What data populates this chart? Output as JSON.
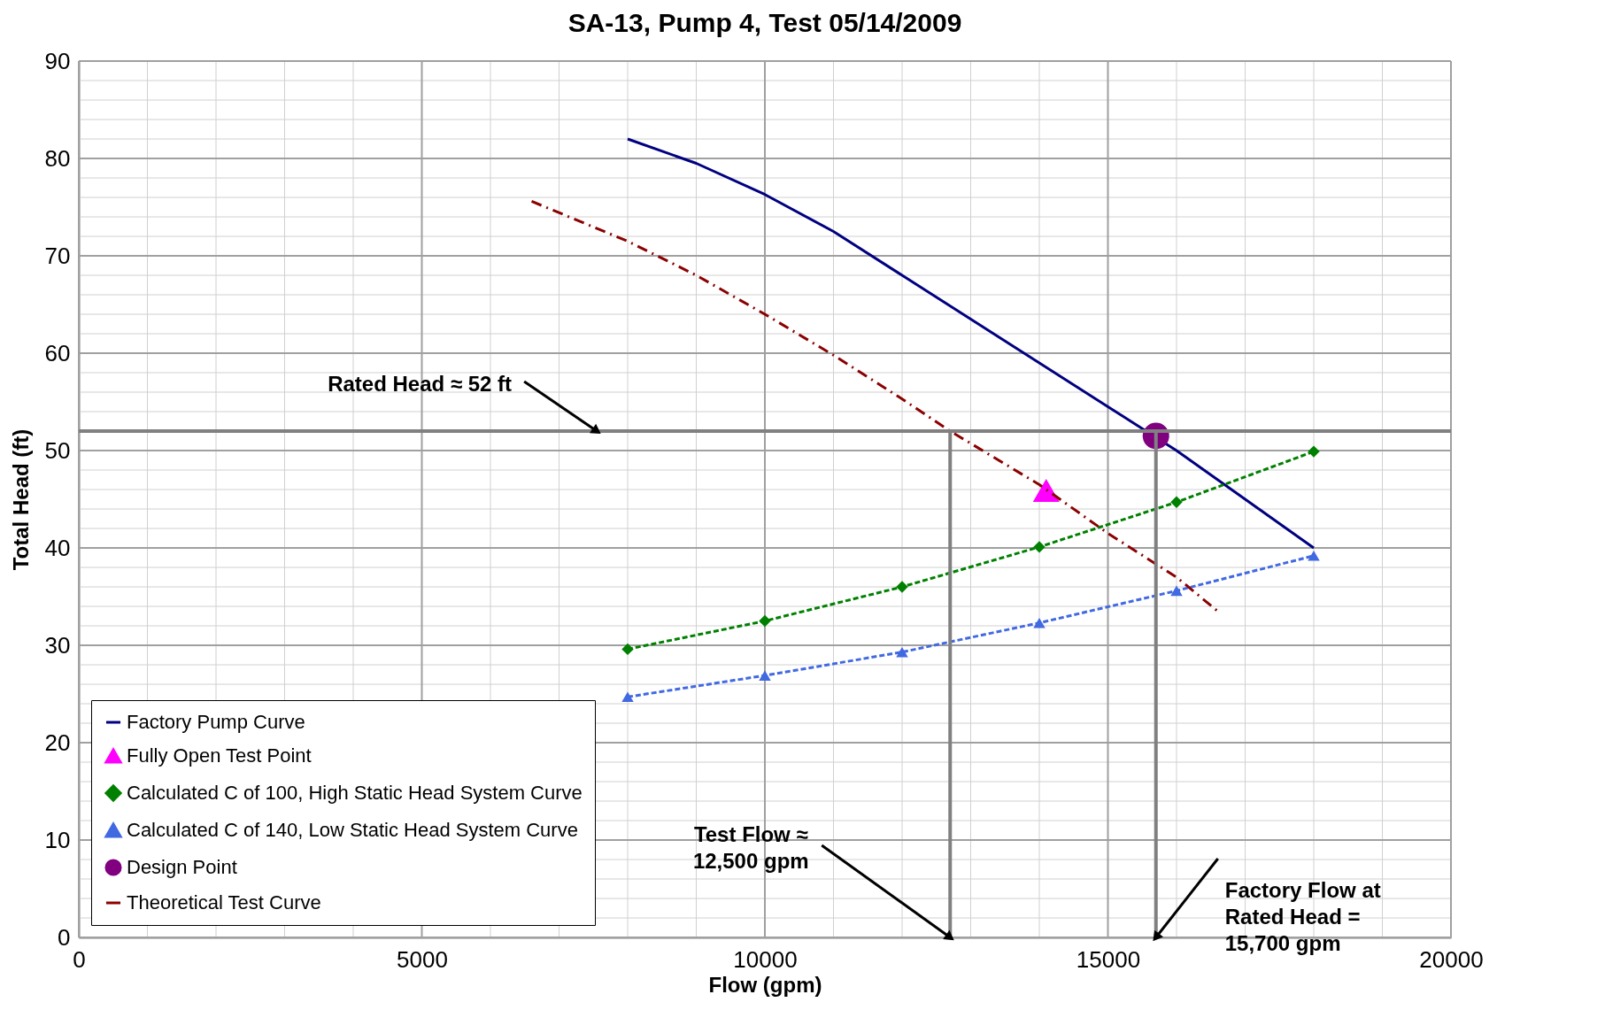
{
  "chart_data": {
    "type": "line",
    "title": "SA-13, Pump 4, Test 05/14/2009",
    "xlabel": "Flow (gpm)",
    "ylabel": "Total Head (ft)",
    "xlim": [
      0,
      20000
    ],
    "ylim": [
      0,
      90
    ],
    "xticks": [
      0,
      {
        "value": 1000,
        "label": null
      },
      {
        "value": 2000,
        "label": null
      },
      {
        "value": 3000,
        "label": null
      },
      {
        "value": 4000,
        "label": null
      },
      5000,
      {
        "value": 6000,
        "label": null
      },
      {
        "value": 7000,
        "label": null
      },
      {
        "value": 8000,
        "label": null
      },
      {
        "value": 9000,
        "label": null
      },
      10000,
      {
        "value": 11000,
        "label": null
      },
      {
        "value": 12000,
        "label": null
      },
      {
        "value": 13000,
        "label": null
      },
      {
        "value": 14000,
        "label": null
      },
      15000,
      {
        "value": 16000,
        "label": null
      },
      {
        "value": 17000,
        "label": null
      },
      {
        "value": 18000,
        "label": null
      },
      {
        "value": 19000,
        "label": null
      },
      20000
    ],
    "yticks": [
      0,
      {
        "value": 2,
        "label": null
      },
      {
        "value": 4,
        "label": null
      },
      {
        "value": 6,
        "label": null
      },
      {
        "value": 8,
        "label": null
      },
      10,
      {
        "value": 12,
        "label": null
      },
      {
        "value": 14,
        "label": null
      },
      {
        "value": 16,
        "label": null
      },
      {
        "value": 18,
        "label": null
      },
      20,
      {
        "value": 22,
        "label": null
      },
      {
        "value": 24,
        "label": null
      },
      {
        "value": 26,
        "label": null
      },
      {
        "value": 28,
        "label": null
      },
      30,
      {
        "value": 32,
        "label": null
      },
      {
        "value": 34,
        "label": null
      },
      {
        "value": 36,
        "label": null
      },
      {
        "value": 38,
        "label": null
      },
      40,
      {
        "value": 42,
        "label": null
      },
      {
        "value": 44,
        "label": null
      },
      {
        "value": 46,
        "label": null
      },
      {
        "value": 48,
        "label": null
      },
      50,
      {
        "value": 52,
        "label": null
      },
      {
        "value": 54,
        "label": null
      },
      {
        "value": 56,
        "label": null
      },
      {
        "value": 58,
        "label": null
      },
      60,
      {
        "value": 62,
        "label": null
      },
      {
        "value": 64,
        "label": null
      },
      {
        "value": 66,
        "label": null
      },
      {
        "value": 68,
        "label": null
      },
      70,
      {
        "value": 72,
        "label": null
      },
      {
        "value": 74,
        "label": null
      },
      {
        "value": 76,
        "label": null
      },
      {
        "value": 78,
        "label": null
      },
      80,
      {
        "value": 82,
        "label": null
      },
      {
        "value": 84,
        "label": null
      },
      {
        "value": 86,
        "label": null
      },
      {
        "value": 88,
        "label": null
      },
      90
    ],
    "grid": true,
    "legend": "bottom left",
    "series": [
      {
        "name": "Factory Pump Curve",
        "color": "#000080",
        "line_style": "solid",
        "marker": "none",
        "x": [
          8000,
          9000,
          10000,
          11000,
          12000,
          13000,
          14000,
          15000,
          16000,
          17000,
          18000
        ],
        "values": [
          82,
          79.5,
          76.3,
          72.5,
          68,
          63.5,
          59,
          54.5,
          50,
          45,
          40
        ]
      },
      {
        "name": "Fully Open Test Point",
        "type": "scatter",
        "color": "#ff00ff",
        "marker": "triangle",
        "x": [
          14100
        ],
        "values": [
          45.9
        ]
      },
      {
        "name": "Calculated C of 100, High Static Head System Curve",
        "color": "#008000",
        "line_style": "dashed",
        "marker": "diamond",
        "x": [
          8000,
          10000,
          12000,
          14000,
          16000,
          18000
        ],
        "values": [
          29.6,
          32.5,
          36,
          40.1,
          44.7,
          49.9
        ]
      },
      {
        "name": "Calculated C of 140, Low Static Head System Curve",
        "color": "#4169e1",
        "line_style": "dashed",
        "marker": "triangle",
        "x": [
          8000,
          10000,
          12000,
          14000,
          16000,
          18000
        ],
        "values": [
          24.7,
          26.9,
          29.3,
          32.3,
          35.6,
          39.2
        ]
      },
      {
        "name": "Design Point",
        "type": "scatter",
        "color": "#800080",
        "marker": "circle",
        "x": [
          15700
        ],
        "values": [
          51.5
        ]
      },
      {
        "name": "Theoretical Test Curve",
        "color": "#8b0000",
        "line_style": "dashdot",
        "marker": "none",
        "x": [
          6600,
          8000,
          9000,
          10000,
          11000,
          12000,
          12700,
          14000,
          15000,
          16000,
          16600
        ],
        "values": [
          75.6,
          71.5,
          68,
          64,
          59.8,
          55.3,
          52,
          46.5,
          41.5,
          37,
          33.5
        ]
      },
      {
        "color": "#808080",
        "line_style": "solid",
        "x": [
          12700,
          12700
        ],
        "values": [
          0,
          52
        ]
      },
      {
        "color": "#808080",
        "line_style": "solid",
        "x": [
          15700,
          15700
        ],
        "values": [
          0,
          52
        ]
      }
    ],
    "ref_lines": [
      {
        "axis": "y",
        "value": 52,
        "color": "#808080"
      }
    ],
    "annotations": [
      {
        "text": "Rated Head ≈ 52 ft",
        "x": 7550,
        "y": 52
      },
      {
        "text": "Test Flow ≈\n12,500 gpm",
        "x": 12700,
        "y": 0
      },
      {
        "text": "Factory Flow at\nRated Head =\n15,700 gpm",
        "x": 15700,
        "y": 0
      }
    ]
  }
}
